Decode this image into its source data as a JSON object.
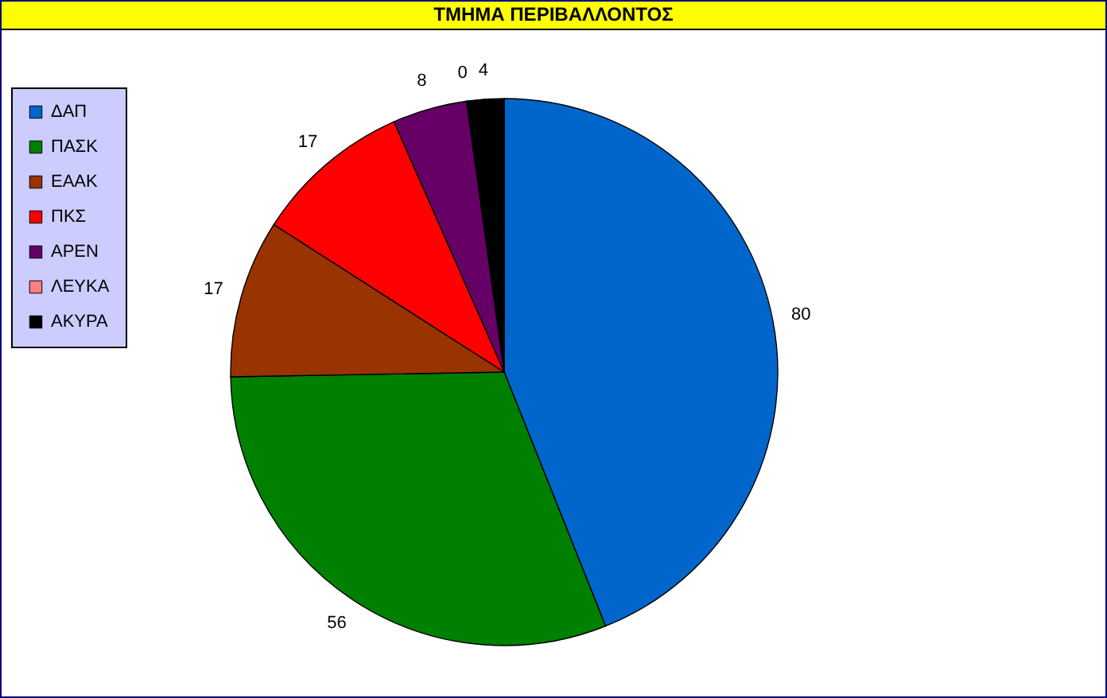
{
  "chart_data": {
    "type": "pie",
    "title": "ΤΜΗΜΑ ΠΕΡΙΒΑΛΛΟΝΤΟΣ",
    "categories": [
      "ΔΑΠ",
      "ΠΑΣΚ",
      "ΕΑΑΚ",
      "ΠΚΣ",
      "ΑΡΕΝ",
      "ΛΕΥΚΑ",
      "ΑΚΥΡΑ"
    ],
    "values": [
      80,
      56,
      17,
      17,
      8,
      0,
      4
    ],
    "colors": [
      "#0066cc",
      "#008000",
      "#993300",
      "#ff0000",
      "#660066",
      "#ff8080",
      "#000000"
    ],
    "value_labels": [
      "80",
      "56",
      "17",
      "17",
      "8",
      "0",
      "4"
    ],
    "legend": "left"
  }
}
